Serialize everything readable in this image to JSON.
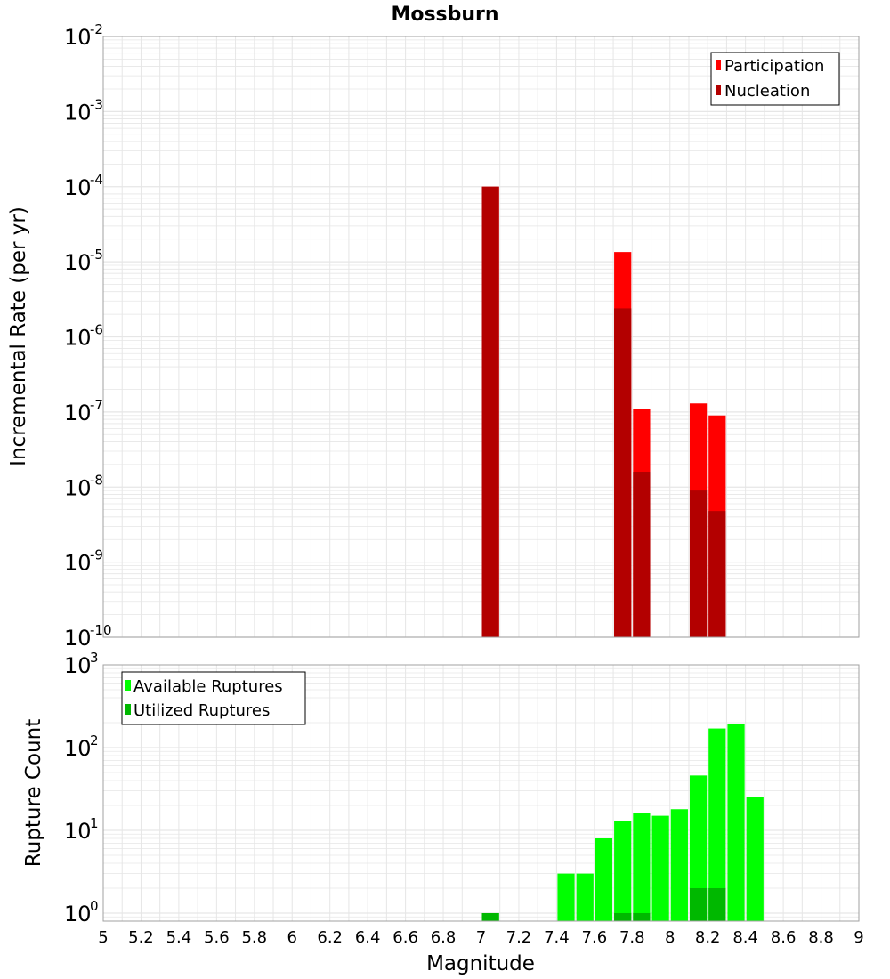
{
  "title": "Mossburn",
  "xlabel": "Magnitude",
  "x_ticks": [
    "5",
    "5.2",
    "5.4",
    "5.6",
    "5.8",
    "6",
    "6.2",
    "6.4",
    "6.6",
    "6.8",
    "7",
    "7.2",
    "7.4",
    "7.6",
    "7.8",
    "8",
    "8.2",
    "8.4",
    "8.6",
    "8.8",
    "9"
  ],
  "colors": {
    "participation": "#ff0000",
    "nucleation": "#b30000",
    "available": "#00ff00",
    "utilized": "#00b800",
    "grid": "#e6e6e6",
    "frame": "#a0a0a0"
  },
  "chart_data": [
    {
      "type": "bar",
      "ylabel": "Incremental Rate (per yr)",
      "yscale": "log",
      "ylim": [
        1e-10,
        0.01
      ],
      "xlim": [
        5,
        9
      ],
      "y_tick_exponents": [
        "-2",
        "-3",
        "-4",
        "-5",
        "-6",
        "-7",
        "-8",
        "-9",
        "-10"
      ],
      "legend": {
        "position": "top-right",
        "entries": [
          "Participation",
          "Nucleation"
        ]
      },
      "bar_width": 0.1,
      "series": [
        {
          "name": "Participation",
          "x": [
            7.05,
            7.75,
            7.85,
            8.15,
            8.25
          ],
          "values": [
            0.0001,
            1.35e-05,
            1.1e-07,
            1.3e-07,
            9e-08
          ]
        },
        {
          "name": "Nucleation",
          "x": [
            7.05,
            7.75,
            7.85,
            8.15,
            8.25
          ],
          "values": [
            0.0001,
            2.4e-06,
            1.6e-08,
            9e-09,
            4.8e-09
          ]
        }
      ]
    },
    {
      "type": "bar",
      "ylabel": "Rupture Count",
      "yscale": "log",
      "ylim": [
        0.8,
        1000
      ],
      "xlim": [
        5,
        9
      ],
      "y_ticks": [
        1,
        10,
        100,
        1000
      ],
      "y_tick_exponents": [
        "0",
        "1",
        "2",
        "3"
      ],
      "legend": {
        "position": "top-left",
        "entries": [
          "Available Ruptures",
          "Utilized Ruptures"
        ]
      },
      "bar_width": 0.1,
      "series": [
        {
          "name": "Available Ruptures",
          "x": [
            7.05,
            7.45,
            7.55,
            7.65,
            7.75,
            7.85,
            7.95,
            8.05,
            8.15,
            8.25,
            8.35,
            8.45
          ],
          "values": [
            1,
            3,
            3,
            8,
            13,
            16,
            15,
            18,
            46,
            170,
            195,
            25
          ]
        },
        {
          "name": "Utilized Ruptures",
          "x": [
            7.05,
            7.75,
            7.85,
            8.15,
            8.25
          ],
          "values": [
            1,
            1,
            1,
            2,
            2
          ]
        }
      ]
    }
  ]
}
